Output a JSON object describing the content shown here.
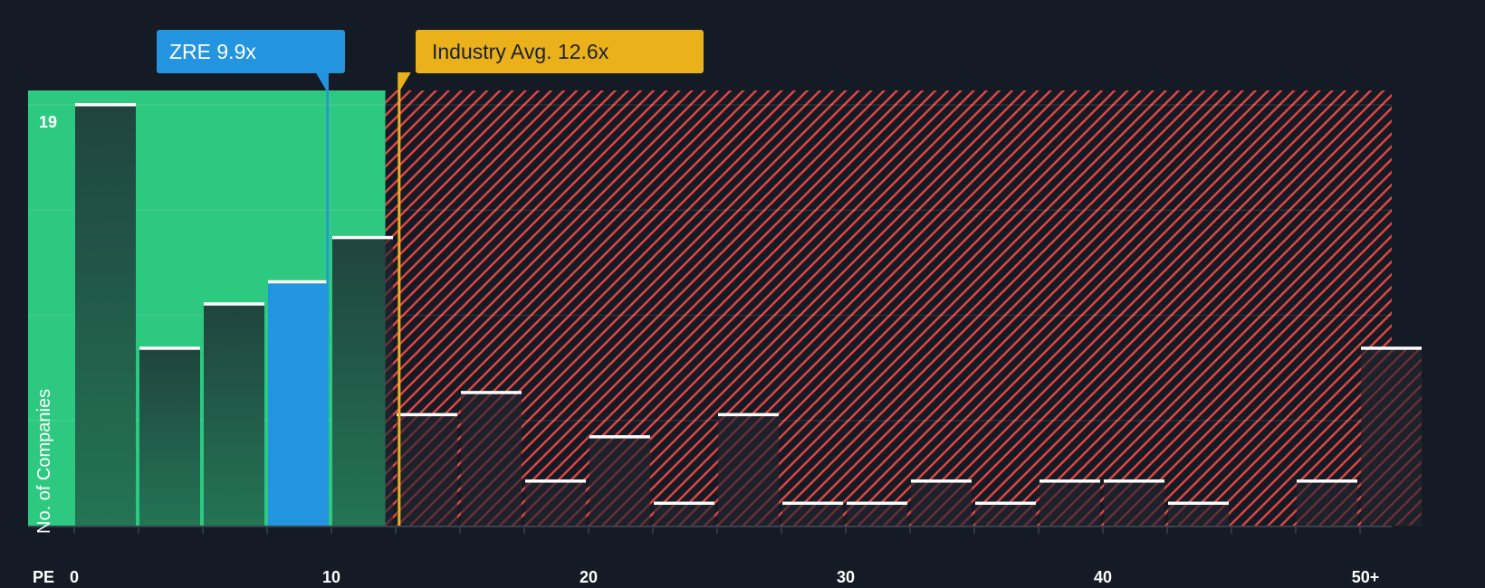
{
  "chart_data": {
    "type": "bar",
    "title": "",
    "xlabel": "PE",
    "ylabel": "No. of Companies",
    "x_tick_labels": [
      "0",
      "10",
      "20",
      "30",
      "40",
      "50+"
    ],
    "x_tick_values": [
      0,
      10,
      20,
      30,
      40,
      50
    ],
    "y_max_label": "19",
    "ylim": [
      0,
      19
    ],
    "bin_width": 2.5,
    "categories": [
      "0-2.5",
      "2.5-5",
      "5-7.5",
      "7.5-10",
      "10-12.5",
      "12.5-15",
      "15-17.5",
      "17.5-20",
      "20-22.5",
      "22.5-25",
      "25-27.5",
      "27.5-30",
      "30-32.5",
      "32.5-35",
      "35-37.5",
      "37.5-40",
      "40-42.5",
      "42.5-45",
      "45-47.5",
      "47.5-50",
      "50+"
    ],
    "values": [
      19,
      8,
      10,
      11,
      13,
      5,
      6,
      2,
      4,
      1,
      5,
      1,
      1,
      2,
      1,
      2,
      2,
      1,
      0,
      2,
      8
    ],
    "highlight_bin_index": 3,
    "markers": [
      {
        "name": "ZRE",
        "value": 9.9,
        "label": "ZRE 9.9x",
        "color": "#2394df"
      },
      {
        "name": "Industry Avg.",
        "value": 12.6,
        "label": "Industry Avg. 12.6x",
        "color": "#ebb11b"
      }
    ],
    "regions": [
      {
        "name": "undervalued",
        "from": -1.8,
        "to": 12.1,
        "color": "#2ec981"
      },
      {
        "name": "overvalued",
        "from": 12.1,
        "to": 51.3,
        "color": "#e64545",
        "pattern": "hatched"
      }
    ],
    "grid": true,
    "legend": "none"
  },
  "labels": {
    "zre_callout": "ZRE 9.9x",
    "industry_callout": "Industry Avg. 12.6x",
    "y_axis": "No. of Companies",
    "y_max": "19",
    "x_axis": "PE",
    "x_ticks": [
      "0",
      "10",
      "20",
      "30",
      "40",
      "50+"
    ]
  },
  "colors": {
    "background": "#151b24",
    "green_region": "#2ec981",
    "bar_dark": "#214a40",
    "highlight_bar": "#2394df",
    "hatch_red": "#e64545",
    "industry": "#ebb11b",
    "bar_top": "#ffffff"
  }
}
